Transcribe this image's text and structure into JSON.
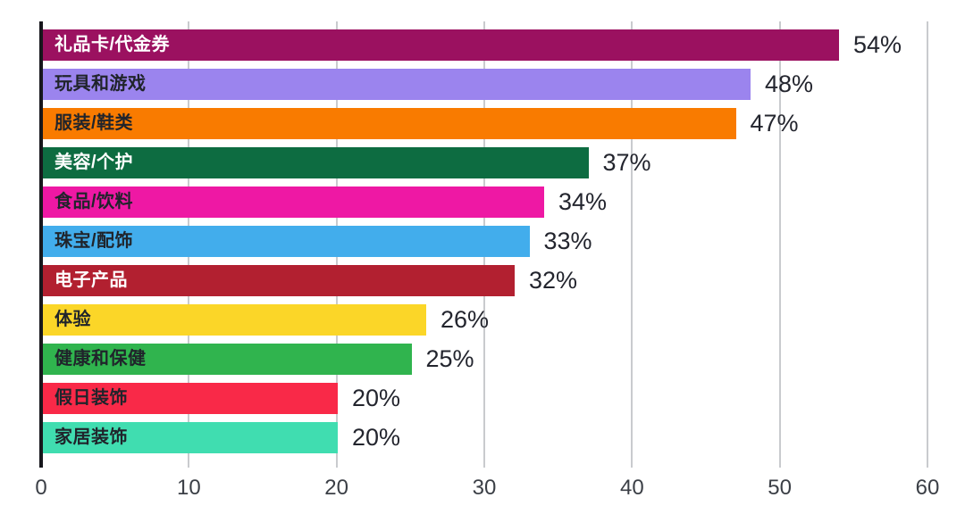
{
  "chart_data": {
    "type": "bar",
    "orientation": "horizontal",
    "title": "",
    "xlabel": "",
    "ylabel": "",
    "categories": [
      "礼品卡/代金券",
      "玩具和游戏",
      "服装/鞋类",
      "美容/个护",
      "食品/饮料",
      "珠宝/配饰",
      "电子产品",
      "体验",
      "健康和保健",
      "假日装饰",
      "家居装饰"
    ],
    "values": [
      54,
      48,
      47,
      37,
      34,
      33,
      32,
      26,
      25,
      20,
      20
    ],
    "value_labels": [
      "54%",
      "48%",
      "47%",
      "37%",
      "34%",
      "33%",
      "32%",
      "26%",
      "25%",
      "20%",
      "20%"
    ],
    "bar_colors": [
      "#9B1160",
      "#9B84EE",
      "#F97B00",
      "#0D6C41",
      "#EE18A4",
      "#42ADEC",
      "#B22030",
      "#FBD628",
      "#30B44E",
      "#F92948",
      "#40DDB0"
    ],
    "category_label_colors": [
      "#FFFFFF",
      "#20242B",
      "#20242B",
      "#FFFFFF",
      "#20242B",
      "#20242B",
      "#FFFFFF",
      "#20242B",
      "#20242B",
      "#20242B",
      "#20242B"
    ],
    "x_ticks": [
      0,
      10,
      20,
      30,
      40,
      50,
      60
    ],
    "xlim": [
      0,
      60
    ],
    "grid": true,
    "legend": false
  },
  "style_colors": {
    "background": "#FFFFFF",
    "grid": "#C9CBCE",
    "axis": "#17171C",
    "value_text": "#23252E",
    "tick_text": "#3B3F46"
  }
}
